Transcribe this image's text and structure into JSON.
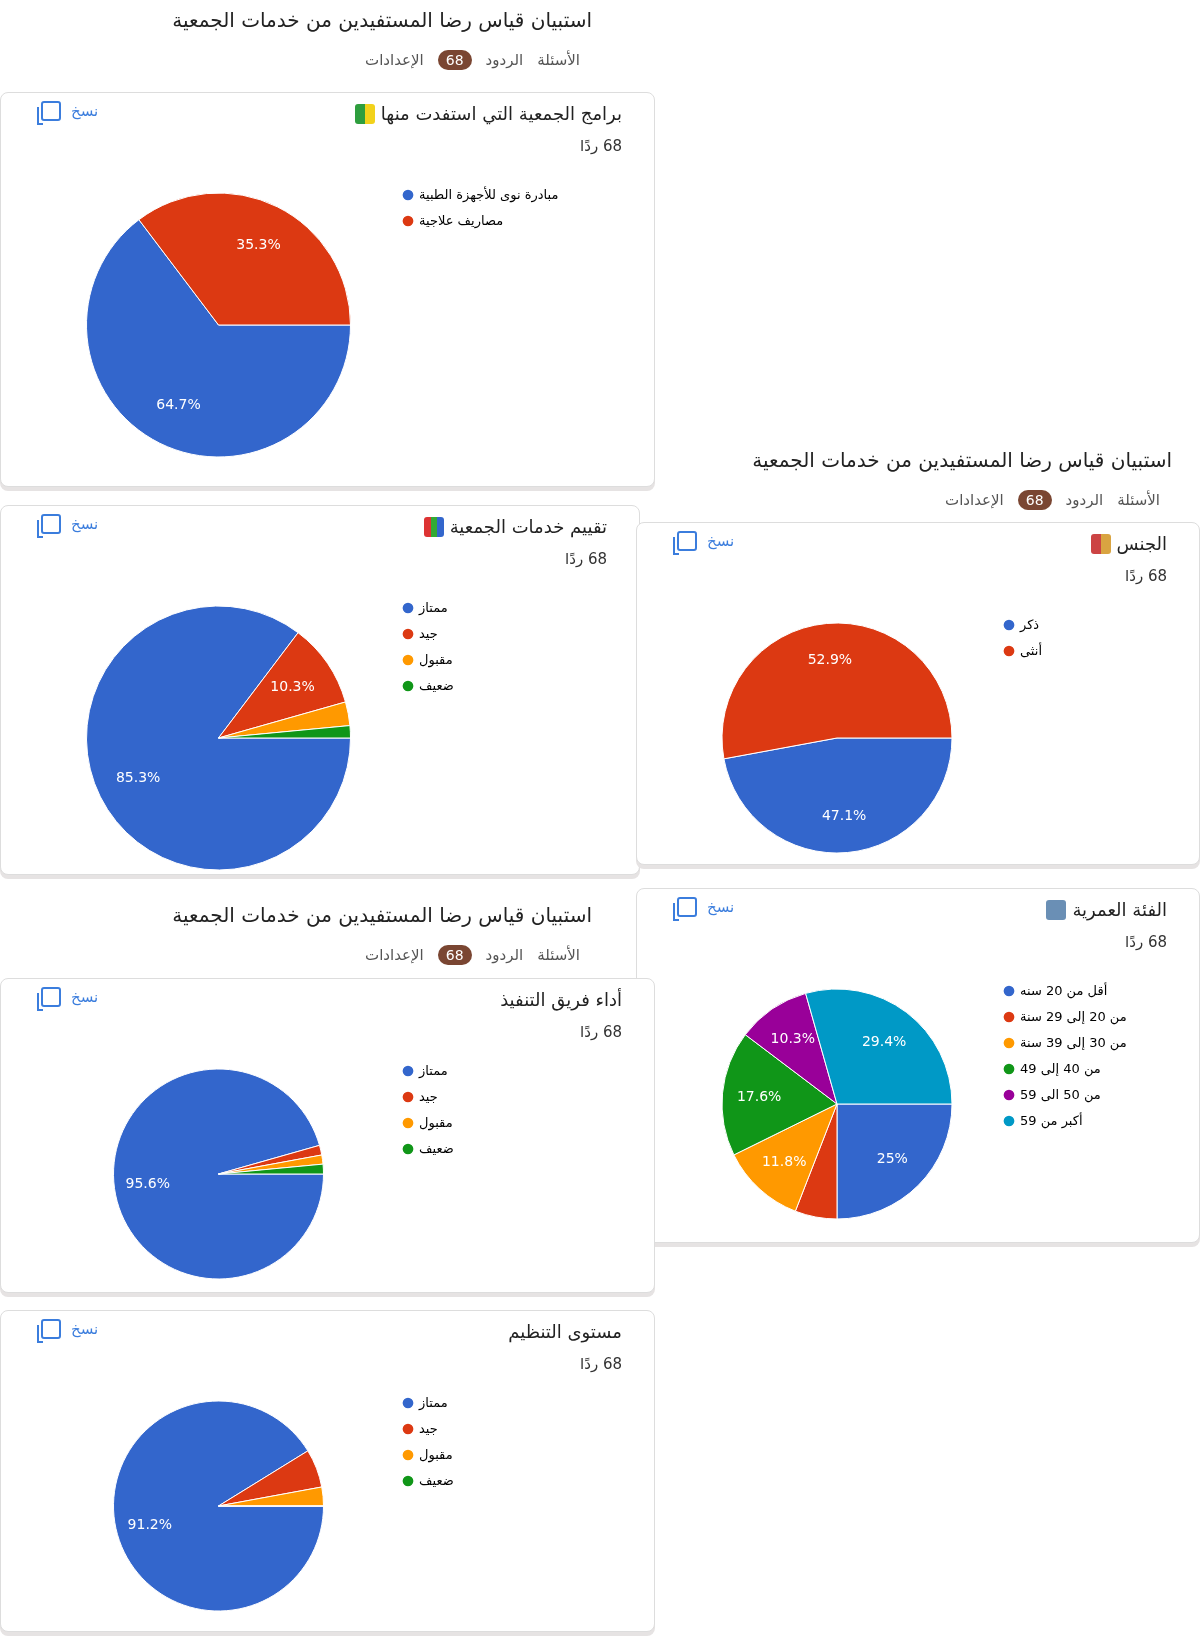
{
  "chart_data": [
    {
      "type": "pie",
      "title": "برامج الجمعية التي استفدت منها",
      "categories": [
        "مبادرة نوى للأجهزة الطبية",
        "مصاريف علاجية"
      ],
      "values": [
        64.7,
        35.3
      ],
      "colors": [
        "#3366cc",
        "#dc3912"
      ],
      "value_labels": [
        "64.7%",
        "35.3%"
      ],
      "legend": "right",
      "annotations": [
        "استبيان قياس رضا المستفيدين من خدمات الجمعية",
        "الأسئلة",
        "الردود",
        "68",
        "الإعدادات",
        "68 ردًا",
        "نسخ"
      ]
    },
    {
      "type": "pie",
      "title": "تقييم خدمات الجمعية",
      "categories": [
        "ممتاز",
        "جيد",
        "مقبول",
        "ضعيف"
      ],
      "values": [
        85.3,
        10.3,
        2.9,
        1.5
      ],
      "colors": [
        "#3366cc",
        "#dc3912",
        "#ff9900",
        "#109618"
      ],
      "value_labels": [
        "85.3%",
        "10.3%",
        null,
        null
      ],
      "legend": "right",
      "annotations": [
        "68 ردًا",
        "نسخ"
      ]
    },
    {
      "type": "pie",
      "title": "الجنس",
      "categories": [
        "ذكر",
        "أنثى"
      ],
      "values": [
        47.1,
        52.9
      ],
      "colors": [
        "#3366cc",
        "#dc3912"
      ],
      "value_labels": [
        "47.1%",
        "52.9%"
      ],
      "legend": "right",
      "annotations": [
        "استبيان قياس رضا المستفيدين من خدمات الجمعية",
        "الأسئلة",
        "الردود",
        "68",
        "الإعدادات",
        "68 ردًا",
        "نسخ"
      ]
    },
    {
      "type": "pie",
      "title": "الفئة العمرية",
      "categories": [
        "أقل من 20 سنه",
        "من 20 إلى 29 سنة",
        "من 30 إلى 39 سنة",
        "من 40 إلى 49",
        "من 50 الى 59",
        "أكبر من 59"
      ],
      "values": [
        25,
        5.9,
        11.8,
        17.6,
        10.3,
        29.4
      ],
      "colors": [
        "#3366cc",
        "#dc3912",
        "#ff9900",
        "#109618",
        "#990099",
        "#0099c6"
      ],
      "value_labels": [
        "25%",
        null,
        "11.8%",
        "17.6%",
        "10.3%",
        "29.4%"
      ],
      "legend": "right",
      "annotations": [
        "68 ردًا",
        "نسخ"
      ]
    },
    {
      "type": "pie",
      "title": "أداء فريق التنفيذ",
      "categories": [
        "ممتاز",
        "جيد",
        "مقبول",
        "ضعيف"
      ],
      "values": [
        95.6,
        1.5,
        1.4,
        1.5
      ],
      "colors": [
        "#3366cc",
        "#dc3912",
        "#ff9900",
        "#109618"
      ],
      "value_labels": [
        "95.6%",
        null,
        null,
        null
      ],
      "legend": "right",
      "annotations": [
        "استبيان قياس رضا المستفيدين من خدمات الجمعية",
        "الأسئلة",
        "الردود",
        "68",
        "الإعدادات",
        "68 ردًا",
        "نسخ"
      ]
    },
    {
      "type": "pie",
      "title": "مستوى التنظيم",
      "categories": [
        "ممتاز",
        "جيد",
        "مقبول",
        "ضعيف"
      ],
      "values": [
        91.2,
        5.9,
        2.9,
        0
      ],
      "colors": [
        "#3366cc",
        "#dc3912",
        "#ff9900",
        "#109618"
      ],
      "value_labels": [
        "91.2%",
        null,
        null,
        null
      ],
      "legend": "right",
      "annotations": [
        "68 ردًا",
        "نسخ"
      ]
    }
  ]
}
